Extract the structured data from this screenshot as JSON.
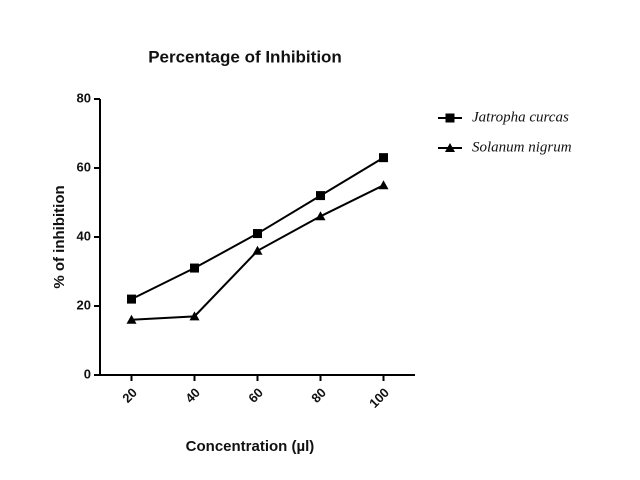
{
  "chart_data": {
    "type": "line",
    "title": "Percentage of Inhibition",
    "x_label": "Concentration (µl)",
    "y_label": "% of inhibition",
    "x": [
      20,
      40,
      60,
      80,
      100
    ],
    "xlim": [
      10,
      110
    ],
    "xticks": [
      20,
      40,
      60,
      80,
      100
    ],
    "ylim": [
      0,
      80
    ],
    "yticks": [
      0,
      20,
      40,
      60,
      80
    ],
    "series": [
      {
        "name": "Jatropha curcas",
        "color": "#000000",
        "marker": "square",
        "values": [
          22,
          31,
          41,
          52,
          63
        ]
      },
      {
        "name": "Solanum nigrum",
        "color": "#000000",
        "marker": "triangle",
        "values": [
          16,
          17,
          36,
          46,
          55
        ]
      }
    ],
    "legend": "right"
  }
}
